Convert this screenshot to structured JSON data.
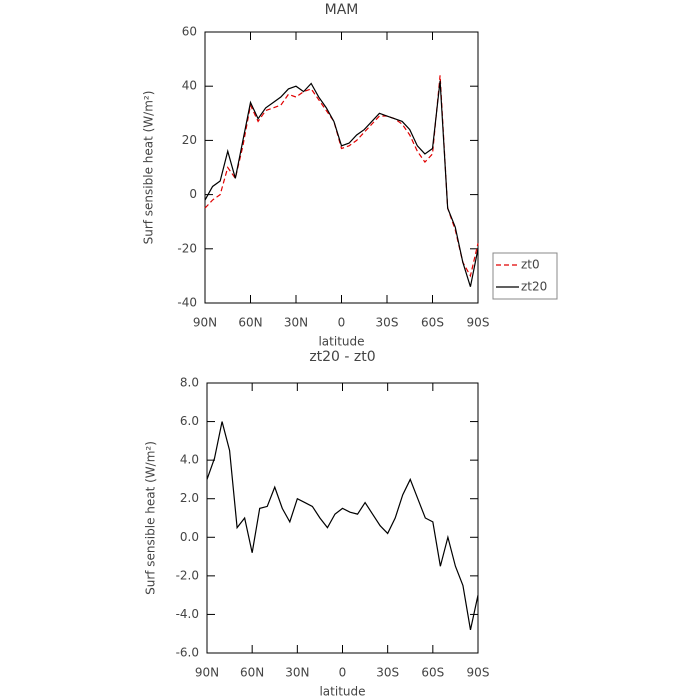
{
  "chart_data": [
    {
      "type": "line",
      "title": "MAM",
      "x_label": "latitude",
      "y_label": "Surf sensible heat (W/m²)",
      "x": [
        90,
        85,
        80,
        75,
        70,
        65,
        60,
        55,
        50,
        45,
        40,
        35,
        30,
        25,
        20,
        15,
        10,
        5,
        0,
        -5,
        -10,
        -15,
        -20,
        -25,
        -30,
        -35,
        -40,
        -45,
        -50,
        -55,
        -60,
        -65,
        -70,
        -75,
        -80,
        -85,
        -90
      ],
      "series": [
        {
          "name": "zt0",
          "color": "#e00000",
          "dash": true,
          "values": [
            -5,
            -2,
            0,
            10,
            6,
            18,
            33,
            27,
            31,
            32,
            33,
            37,
            36,
            38,
            39,
            35,
            31,
            27,
            17,
            18,
            20,
            23,
            26,
            29,
            29,
            28,
            26,
            22,
            16,
            12,
            15,
            44,
            -5,
            -13,
            -25,
            -30,
            -18
          ]
        },
        {
          "name": "zt20",
          "color": "#000000",
          "dash": false,
          "values": [
            -2,
            3,
            5,
            16,
            6,
            20,
            34,
            28,
            32,
            34,
            36,
            39,
            40,
            38,
            41,
            36,
            32,
            27,
            18,
            19,
            22,
            24,
            27,
            30,
            29,
            28,
            27,
            24,
            18,
            15,
            17,
            42,
            -5,
            -12,
            -25,
            -34,
            -20
          ]
        }
      ],
      "xlim": [
        90,
        -90
      ],
      "xticks": [
        {
          "value": 90,
          "label": "90N"
        },
        {
          "value": 60,
          "label": "60N"
        },
        {
          "value": 30,
          "label": "30N"
        },
        0,
        {
          "value": -30,
          "label": "30S"
        },
        {
          "value": -60,
          "label": "60S"
        },
        {
          "value": -90,
          "label": "90S"
        }
      ],
      "ylim": [
        -40,
        60
      ],
      "yticks": [
        -40,
        -20,
        0,
        20,
        40,
        60
      ],
      "legend": "right"
    },
    {
      "type": "line",
      "title": "zt20 - zt0",
      "x_label": "latitude",
      "y_label": "Surf sensible heat (W/m²)",
      "x": [
        90,
        85,
        80,
        75,
        70,
        65,
        60,
        55,
        50,
        45,
        40,
        35,
        30,
        25,
        20,
        15,
        10,
        5,
        0,
        -5,
        -10,
        -15,
        -20,
        -25,
        -30,
        -35,
        -40,
        -45,
        -50,
        -55,
        -60,
        -65,
        -70,
        -75,
        -80,
        -85,
        -90
      ],
      "series": [
        {
          "color": "#000000",
          "dash": false,
          "values": [
            3.0,
            4.1,
            6.0,
            4.5,
            0.5,
            1.0,
            -0.8,
            1.5,
            1.6,
            2.6,
            1.5,
            0.8,
            2.0,
            1.8,
            1.6,
            1.0,
            0.5,
            1.2,
            1.5,
            1.3,
            1.2,
            1.8,
            1.2,
            0.6,
            0.2,
            1.0,
            2.2,
            3.0,
            2.0,
            1.0,
            0.8,
            -1.5,
            0.0,
            -1.5,
            -2.5,
            -4.8,
            -3.0
          ]
        }
      ],
      "xlim": [
        90,
        -90
      ],
      "xticks": [
        {
          "value": 90,
          "label": "90N"
        },
        {
          "value": 60,
          "label": "60N"
        },
        {
          "value": 30,
          "label": "30N"
        },
        0,
        {
          "value": -30,
          "label": "30S"
        },
        {
          "value": -60,
          "label": "60S"
        },
        {
          "value": -90,
          "label": "90S"
        }
      ],
      "ylim": [
        -6,
        8
      ],
      "yticks": [
        {
          "value": -6,
          "label": "-6.0"
        },
        {
          "value": -4,
          "label": "-4.0"
        },
        {
          "value": -2,
          "label": "-2.0"
        },
        {
          "value": 0,
          "label": "0.0"
        },
        {
          "value": 2,
          "label": "2.0"
        },
        {
          "value": 4,
          "label": "4.0"
        },
        {
          "value": 6,
          "label": "6.0"
        },
        {
          "value": 8,
          "label": "8.0"
        }
      ]
    }
  ]
}
